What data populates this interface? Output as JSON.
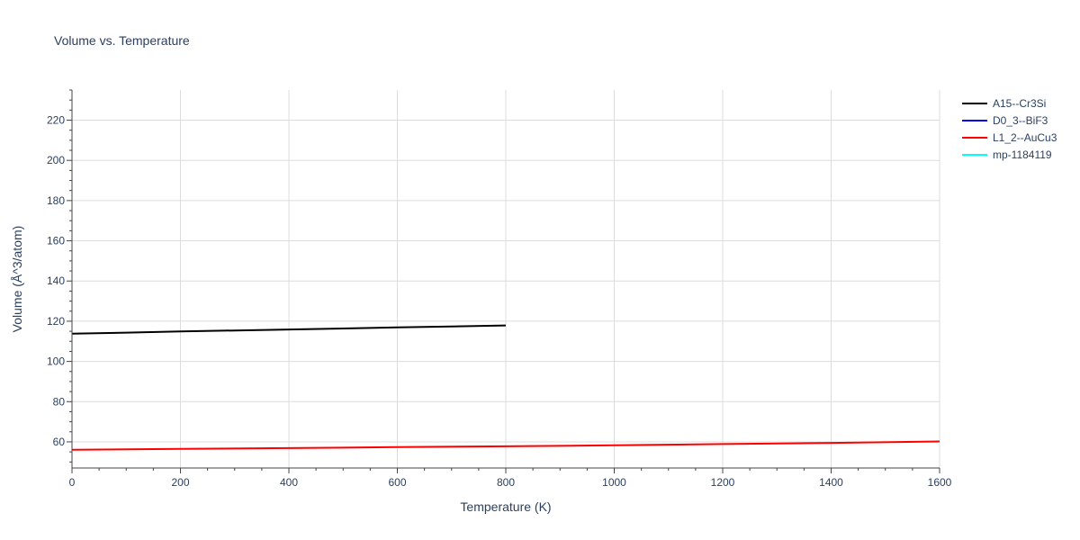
{
  "chart_data": {
    "type": "line",
    "title": "Volume vs. Temperature",
    "xlabel": "Temperature (K)",
    "ylabel": "Volume (Å^3/atom)",
    "xlim": [
      0,
      1600
    ],
    "ylim": [
      47,
      235
    ],
    "x_ticks": [
      0,
      200,
      400,
      600,
      800,
      1000,
      1200,
      1400,
      1600
    ],
    "y_ticks": [
      60,
      80,
      100,
      120,
      140,
      160,
      180,
      200,
      220
    ],
    "grid": true,
    "legend_position": "top-right",
    "series": [
      {
        "name": "A15--Cr3Si",
        "color": "#000000",
        "x": [
          0,
          100,
          200,
          300,
          400,
          500,
          600,
          700,
          800
        ],
        "y": [
          113.8,
          114.3,
          114.9,
          115.4,
          115.9,
          116.4,
          116.9,
          117.4,
          117.9
        ]
      },
      {
        "name": "D0_3--BiF3",
        "color": "#0000ff",
        "x": [],
        "y": []
      },
      {
        "name": "L1_2--AuCu3",
        "color": "#ff0000",
        "x": [
          0,
          200,
          400,
          600,
          800,
          1000,
          1200,
          1400,
          1600
        ],
        "y": [
          56.1,
          56.5,
          56.9,
          57.4,
          57.8,
          58.3,
          58.9,
          59.5,
          60.2
        ]
      },
      {
        "name": "mp-1184119",
        "color": "#00ffff",
        "x": [],
        "y": []
      }
    ]
  }
}
